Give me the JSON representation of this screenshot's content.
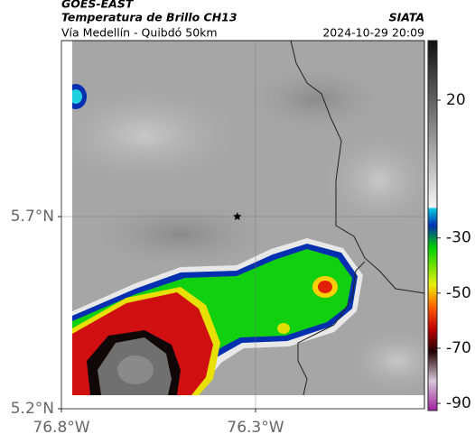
{
  "header": {
    "source": "GOES-EAST",
    "title": "Temperatura de Brillo CH13",
    "organization": "SIATA",
    "subtitle": "Vía Medellín - Quibdó 50km",
    "timestamp": "2024-10-29 20:09"
  },
  "map": {
    "xlim": [
      -76.8,
      -75.865
    ],
    "ylim": [
      5.2,
      6.158
    ],
    "xticks": [
      {
        "value": -76.8,
        "label": "76.8°W"
      },
      {
        "value": -76.3,
        "label": "76.3°W"
      }
    ],
    "yticks": [
      {
        "value": 5.2,
        "label": "5.2°N"
      },
      {
        "value": 5.7,
        "label": "5.7°N"
      }
    ],
    "grid": true,
    "marker": {
      "lon": -76.347,
      "lat": 5.7
    }
  },
  "colorbar": {
    "lim": [
      -92.6,
      41.6
    ],
    "ticks": [
      20,
      -30,
      -50,
      -70,
      -90
    ]
  }
}
